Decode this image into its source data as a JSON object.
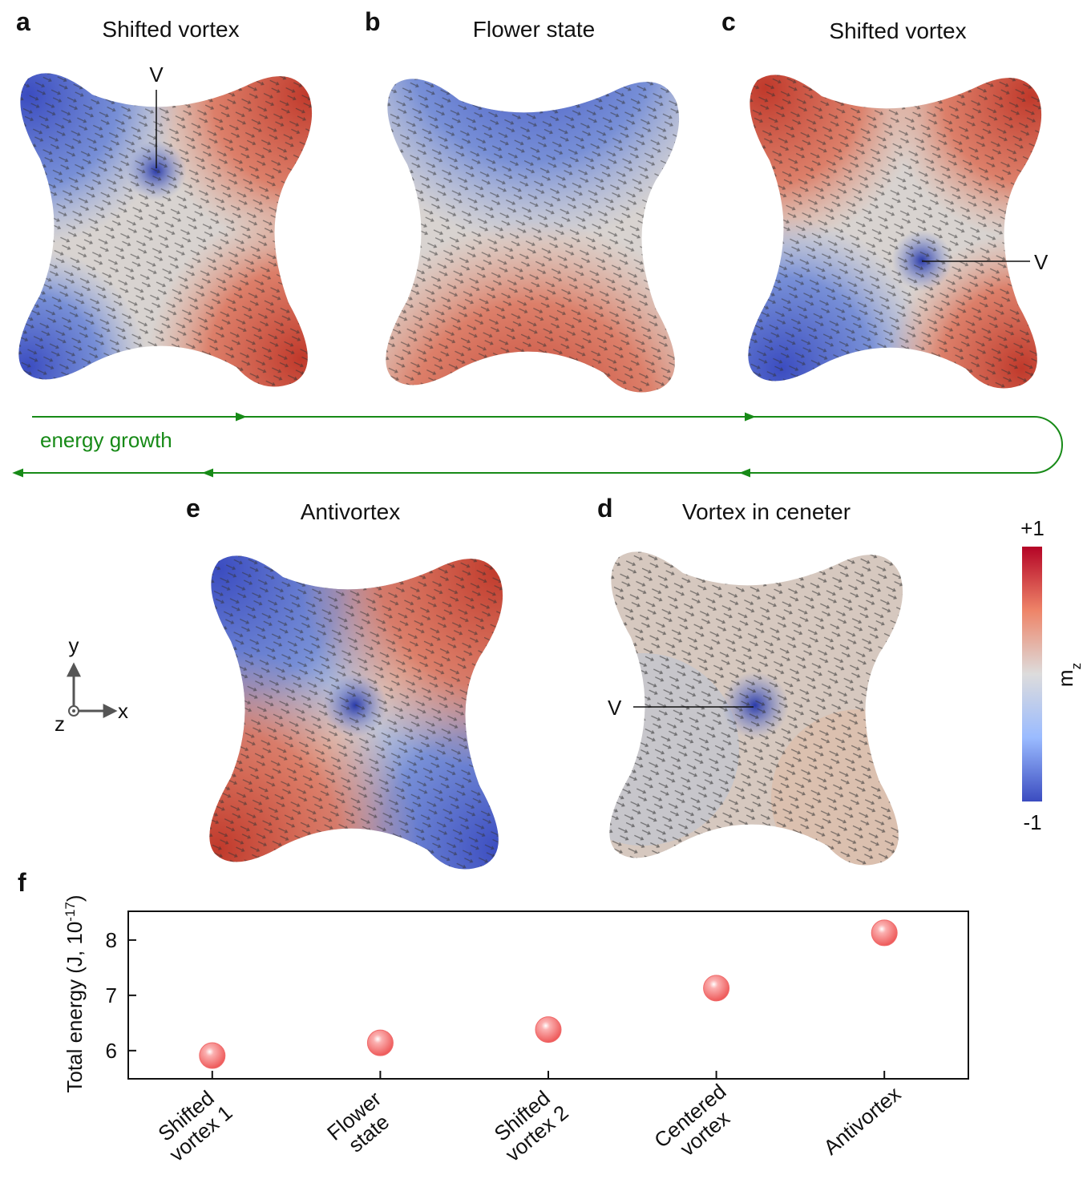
{
  "panels": [
    {
      "letter": "a",
      "title": "Shifted vortex",
      "marker": "V"
    },
    {
      "letter": "b",
      "title": "Flower state"
    },
    {
      "letter": "c",
      "title": "Shifted vortex",
      "marker": "V"
    },
    {
      "letter": "e",
      "title": "Antivortex"
    },
    {
      "letter": "d",
      "title": "Vortex in ceneter",
      "marker": "V"
    }
  ],
  "flow_label": "energy growth",
  "colorbar": {
    "max_label": "+1",
    "min_label": "-1",
    "label": "m",
    "label_sub": "z"
  },
  "axes_icon": {
    "y": "y",
    "x": "x",
    "z": "z"
  },
  "chart_data": {
    "type": "scatter",
    "letter": "f",
    "ylabel": "Total energy (J, 10",
    "ylabel_exponent": "-17",
    "ylabel_end": ")",
    "categories": [
      "Shifted\nvortex 1",
      "Flower\nstate",
      "Shifted\nvortex 2",
      "Centered\nvortex",
      "Antivortex"
    ],
    "values": [
      5.91,
      6.14,
      6.38,
      7.13,
      8.13
    ],
    "color": "#f06a6a",
    "ylim": [
      5.49,
      8.52
    ],
    "yticks": [
      6,
      7,
      8
    ]
  }
}
